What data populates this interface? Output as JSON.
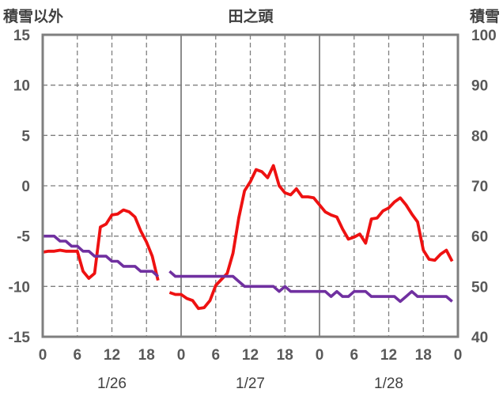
{
  "chart_data": {
    "type": "line",
    "title": "田之頭",
    "y_left_label": "積雪以外",
    "y_right_label": "積雪",
    "y_left_ticks": [
      15,
      10,
      5,
      0,
      -5,
      -10,
      -15
    ],
    "y_right_ticks": [
      100,
      90,
      80,
      70,
      60,
      50,
      40
    ],
    "y_left_range": [
      -15,
      15
    ],
    "y_right_range": [
      40,
      100
    ],
    "x_range_hours": [
      0,
      72
    ],
    "x_tick_labels": [
      "0",
      "6",
      "12",
      "18",
      "0",
      "6",
      "12",
      "18",
      "0",
      "6",
      "12",
      "18",
      "0"
    ],
    "x_day_labels": [
      "1/26",
      "1/27",
      "1/28"
    ],
    "grid": "dashed vertical at 6 and 18, solid vertical at day boundaries, dashed horizontal at each y tick",
    "series": [
      {
        "color": "#ee1111",
        "axis": "left",
        "segments": [
          [
            [
              0,
              -6.6
            ],
            [
              1,
              -6.5
            ],
            [
              2,
              -6.5
            ],
            [
              3,
              -6.4
            ],
            [
              4,
              -6.5
            ],
            [
              5,
              -6.5
            ],
            [
              6,
              -6.5
            ],
            [
              7,
              -8.5
            ],
            [
              8,
              -9.2
            ],
            [
              9,
              -8.7
            ],
            [
              10,
              -4.1
            ],
            [
              11,
              -3.8
            ],
            [
              12,
              -2.9
            ],
            [
              13,
              -2.8
            ],
            [
              14,
              -2.4
            ],
            [
              15,
              -2.6
            ],
            [
              16,
              -3.1
            ],
            [
              17,
              -4.5
            ],
            [
              18,
              -5.6
            ],
            [
              19,
              -7.0
            ],
            [
              20,
              -9.4
            ]
          ],
          [
            [
              22,
              -10.6
            ],
            [
              23,
              -10.8
            ],
            [
              24,
              -10.8
            ],
            [
              25,
              -11.2
            ],
            [
              26,
              -11.4
            ],
            [
              27,
              -12.2
            ],
            [
              28,
              -12.1
            ],
            [
              29,
              -11.4
            ],
            [
              30,
              -9.9
            ],
            [
              31,
              -9.3
            ],
            [
              32,
              -8.7
            ],
            [
              33,
              -6.7
            ],
            [
              34,
              -3.2
            ],
            [
              35,
              -0.5
            ],
            [
              36,
              0.4
            ],
            [
              37,
              1.6
            ],
            [
              38,
              1.4
            ],
            [
              39,
              0.8
            ],
            [
              40,
              2.0
            ],
            [
              41,
              0.0
            ],
            [
              42,
              -0.7
            ],
            [
              43,
              -0.9
            ],
            [
              44,
              -0.3
            ],
            [
              45,
              -1.1
            ],
            [
              46,
              -1.1
            ],
            [
              47,
              -1.2
            ],
            [
              48,
              -1.9
            ],
            [
              49,
              -2.6
            ],
            [
              50,
              -2.9
            ],
            [
              51,
              -3.1
            ],
            [
              52,
              -4.3
            ],
            [
              53,
              -5.3
            ],
            [
              54,
              -5.1
            ],
            [
              55,
              -4.8
            ],
            [
              56,
              -5.7
            ],
            [
              57,
              -3.3
            ],
            [
              58,
              -3.2
            ],
            [
              59,
              -2.5
            ],
            [
              60,
              -2.2
            ],
            [
              61,
              -1.6
            ],
            [
              62,
              -1.2
            ],
            [
              63,
              -1.9
            ],
            [
              64,
              -2.8
            ],
            [
              65,
              -3.6
            ],
            [
              66,
              -6.4
            ],
            [
              67,
              -7.3
            ],
            [
              68,
              -7.4
            ],
            [
              69,
              -6.8
            ],
            [
              70,
              -6.4
            ],
            [
              71,
              -7.5
            ]
          ]
        ]
      },
      {
        "color": "#7030a0",
        "axis": "right",
        "segments": [
          [
            [
              0,
              60
            ],
            [
              1,
              60
            ],
            [
              2,
              60
            ],
            [
              3,
              59
            ],
            [
              4,
              59
            ],
            [
              5,
              58
            ],
            [
              6,
              58
            ],
            [
              7,
              57
            ],
            [
              8,
              57
            ],
            [
              9,
              56
            ],
            [
              10,
              56
            ],
            [
              11,
              56
            ],
            [
              12,
              55
            ],
            [
              13,
              55
            ],
            [
              14,
              54
            ],
            [
              15,
              54
            ],
            [
              16,
              54
            ],
            [
              17,
              53
            ],
            [
              18,
              53
            ],
            [
              19,
              53
            ],
            [
              20,
              52
            ]
          ],
          [
            [
              22,
              53
            ],
            [
              23,
              52
            ],
            [
              24,
              52
            ],
            [
              25,
              52
            ],
            [
              26,
              52
            ],
            [
              27,
              52
            ],
            [
              28,
              52
            ],
            [
              29,
              52
            ],
            [
              30,
              52
            ],
            [
              31,
              52
            ],
            [
              32,
              52
            ],
            [
              33,
              52
            ],
            [
              34,
              51
            ],
            [
              35,
              50
            ],
            [
              36,
              50
            ],
            [
              37,
              50
            ],
            [
              38,
              50
            ],
            [
              39,
              50
            ],
            [
              40,
              50
            ],
            [
              41,
              49
            ],
            [
              42,
              50
            ],
            [
              43,
              49
            ],
            [
              44,
              49
            ],
            [
              45,
              49
            ],
            [
              46,
              49
            ],
            [
              47,
              49
            ],
            [
              48,
              49
            ],
            [
              49,
              49
            ],
            [
              50,
              48
            ],
            [
              51,
              49
            ],
            [
              52,
              48
            ],
            [
              53,
              48
            ],
            [
              54,
              49
            ],
            [
              55,
              49
            ],
            [
              56,
              49
            ],
            [
              57,
              48
            ],
            [
              58,
              48
            ],
            [
              59,
              48
            ],
            [
              60,
              48
            ],
            [
              61,
              48
            ],
            [
              62,
              47
            ],
            [
              63,
              48
            ],
            [
              64,
              49
            ],
            [
              65,
              48
            ],
            [
              66,
              48
            ],
            [
              67,
              48
            ],
            [
              68,
              48
            ],
            [
              69,
              48
            ],
            [
              70,
              48
            ],
            [
              71,
              47
            ]
          ]
        ]
      }
    ]
  }
}
